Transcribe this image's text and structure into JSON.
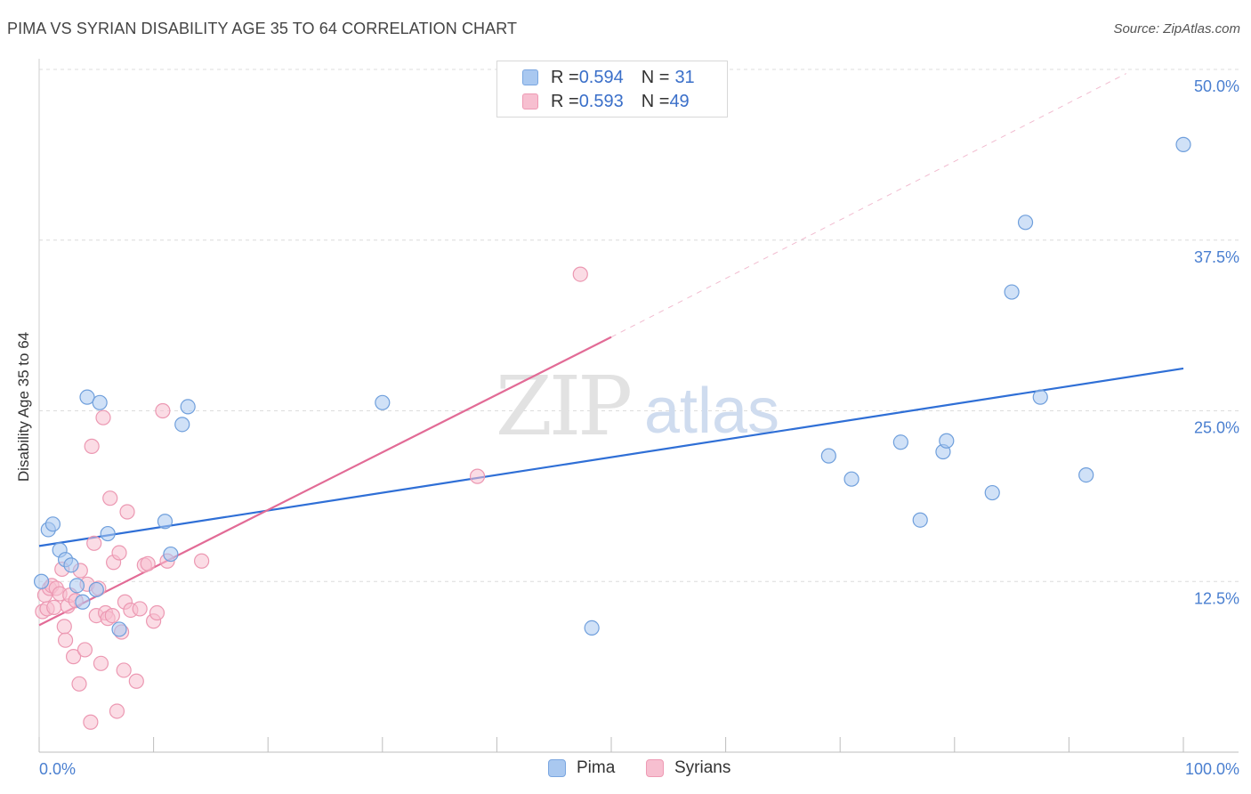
{
  "header": {
    "title": "PIMA VS SYRIAN DISABILITY AGE 35 TO 64 CORRELATION CHART",
    "source": "Source: ZipAtlas.com"
  },
  "watermark": {
    "zip": "ZIP",
    "atlas": "atlas"
  },
  "legend": {
    "rows": [
      {
        "r_label": "R = ",
        "r_value": "0.594",
        "n_label": "N = ",
        "n_value": "31",
        "color": "#a9c8f0",
        "border": "#7aa6e0"
      },
      {
        "r_label": "R = ",
        "r_value": "0.593",
        "n_label": "N = ",
        "n_value": "49",
        "color": "#f7bfd0",
        "border": "#ee9ab4"
      }
    ]
  },
  "bottom_legend": [
    {
      "label": "Pima",
      "color": "#a9c8f0",
      "border": "#7aa6e0"
    },
    {
      "label": "Syrians",
      "color": "#f7bfd0",
      "border": "#ee9ab4"
    }
  ],
  "chart_data": {
    "type": "scatter",
    "title": "PIMA VS SYRIAN DISABILITY AGE 35 TO 64 CORRELATION CHART",
    "xlabel": "",
    "ylabel": "Disability Age 35 to 64",
    "xlim": [
      0,
      100
    ],
    "ylim": [
      0,
      50
    ],
    "x_tick_labels": [
      "0.0%",
      "100.0%"
    ],
    "y_ticks": [
      12.5,
      25.0,
      37.5,
      50.0
    ],
    "y_tick_labels": [
      "12.5%",
      "25.0%",
      "37.5%",
      "50.0%"
    ],
    "grid": true,
    "series": [
      {
        "name": "Pima",
        "color": "#a9c8f0",
        "stroke": "#6f9fdc",
        "points": [
          [
            0.2,
            12.5
          ],
          [
            0.8,
            16.3
          ],
          [
            1.2,
            16.7
          ],
          [
            1.8,
            14.8
          ],
          [
            2.3,
            14.1
          ],
          [
            2.8,
            13.7
          ],
          [
            3.3,
            12.2
          ],
          [
            3.8,
            11.0
          ],
          [
            4.2,
            26.0
          ],
          [
            5.0,
            11.9
          ],
          [
            5.3,
            25.6
          ],
          [
            6.0,
            16.0
          ],
          [
            7.0,
            9.0
          ],
          [
            11.0,
            16.9
          ],
          [
            11.5,
            14.5
          ],
          [
            12.5,
            24.0
          ],
          [
            13.0,
            25.3
          ],
          [
            30.0,
            25.6
          ],
          [
            48.3,
            9.1
          ],
          [
            69.0,
            21.7
          ],
          [
            71.0,
            20.0
          ],
          [
            75.3,
            22.7
          ],
          [
            77.0,
            17.0
          ],
          [
            79.0,
            22.0
          ],
          [
            79.3,
            22.8
          ],
          [
            83.3,
            19.0
          ],
          [
            85.0,
            33.7
          ],
          [
            86.2,
            38.8
          ],
          [
            87.5,
            26.0
          ],
          [
            91.5,
            20.3
          ],
          [
            100.0,
            44.5
          ]
        ]
      },
      {
        "name": "Syrians",
        "color": "#f7bfd0",
        "stroke": "#ec98b2",
        "points": [
          [
            0.3,
            10.3
          ],
          [
            0.5,
            11.5
          ],
          [
            0.7,
            10.5
          ],
          [
            0.9,
            12.0
          ],
          [
            1.1,
            12.2
          ],
          [
            1.3,
            10.6
          ],
          [
            1.5,
            12.0
          ],
          [
            1.8,
            11.6
          ],
          [
            2.0,
            13.4
          ],
          [
            2.2,
            9.2
          ],
          [
            2.3,
            8.2
          ],
          [
            2.5,
            10.7
          ],
          [
            2.7,
            11.5
          ],
          [
            3.0,
            7.0
          ],
          [
            3.2,
            11.1
          ],
          [
            3.5,
            5.0
          ],
          [
            3.6,
            13.3
          ],
          [
            4.0,
            7.5
          ],
          [
            4.2,
            12.3
          ],
          [
            4.5,
            2.2
          ],
          [
            4.6,
            22.4
          ],
          [
            4.8,
            15.3
          ],
          [
            5.0,
            10.0
          ],
          [
            5.2,
            12.0
          ],
          [
            5.4,
            6.5
          ],
          [
            5.6,
            24.5
          ],
          [
            5.8,
            10.2
          ],
          [
            6.0,
            9.8
          ],
          [
            6.2,
            18.6
          ],
          [
            6.4,
            10.0
          ],
          [
            6.5,
            13.9
          ],
          [
            6.8,
            3.0
          ],
          [
            7.0,
            14.6
          ],
          [
            7.2,
            8.8
          ],
          [
            7.4,
            6.0
          ],
          [
            7.5,
            11.0
          ],
          [
            7.7,
            17.6
          ],
          [
            8.0,
            10.4
          ],
          [
            8.5,
            5.2
          ],
          [
            8.8,
            10.5
          ],
          [
            9.2,
            13.7
          ],
          [
            9.5,
            13.8
          ],
          [
            10.0,
            9.6
          ],
          [
            10.3,
            10.2
          ],
          [
            10.8,
            25.0
          ],
          [
            11.2,
            14.0
          ],
          [
            14.2,
            14.0
          ],
          [
            38.3,
            20.2
          ],
          [
            47.3,
            35.0
          ]
        ]
      }
    ],
    "trendlines": [
      {
        "series": "Pima",
        "color": "#2f6fd6",
        "from": [
          0,
          15.1
        ],
        "to": [
          100,
          28.1
        ]
      },
      {
        "series": "Syrians",
        "color": "#e26b96",
        "from": [
          0,
          9.3
        ],
        "to": [
          50,
          30.4
        ],
        "dashed_extension_to": [
          95,
          49.7
        ]
      }
    ]
  }
}
